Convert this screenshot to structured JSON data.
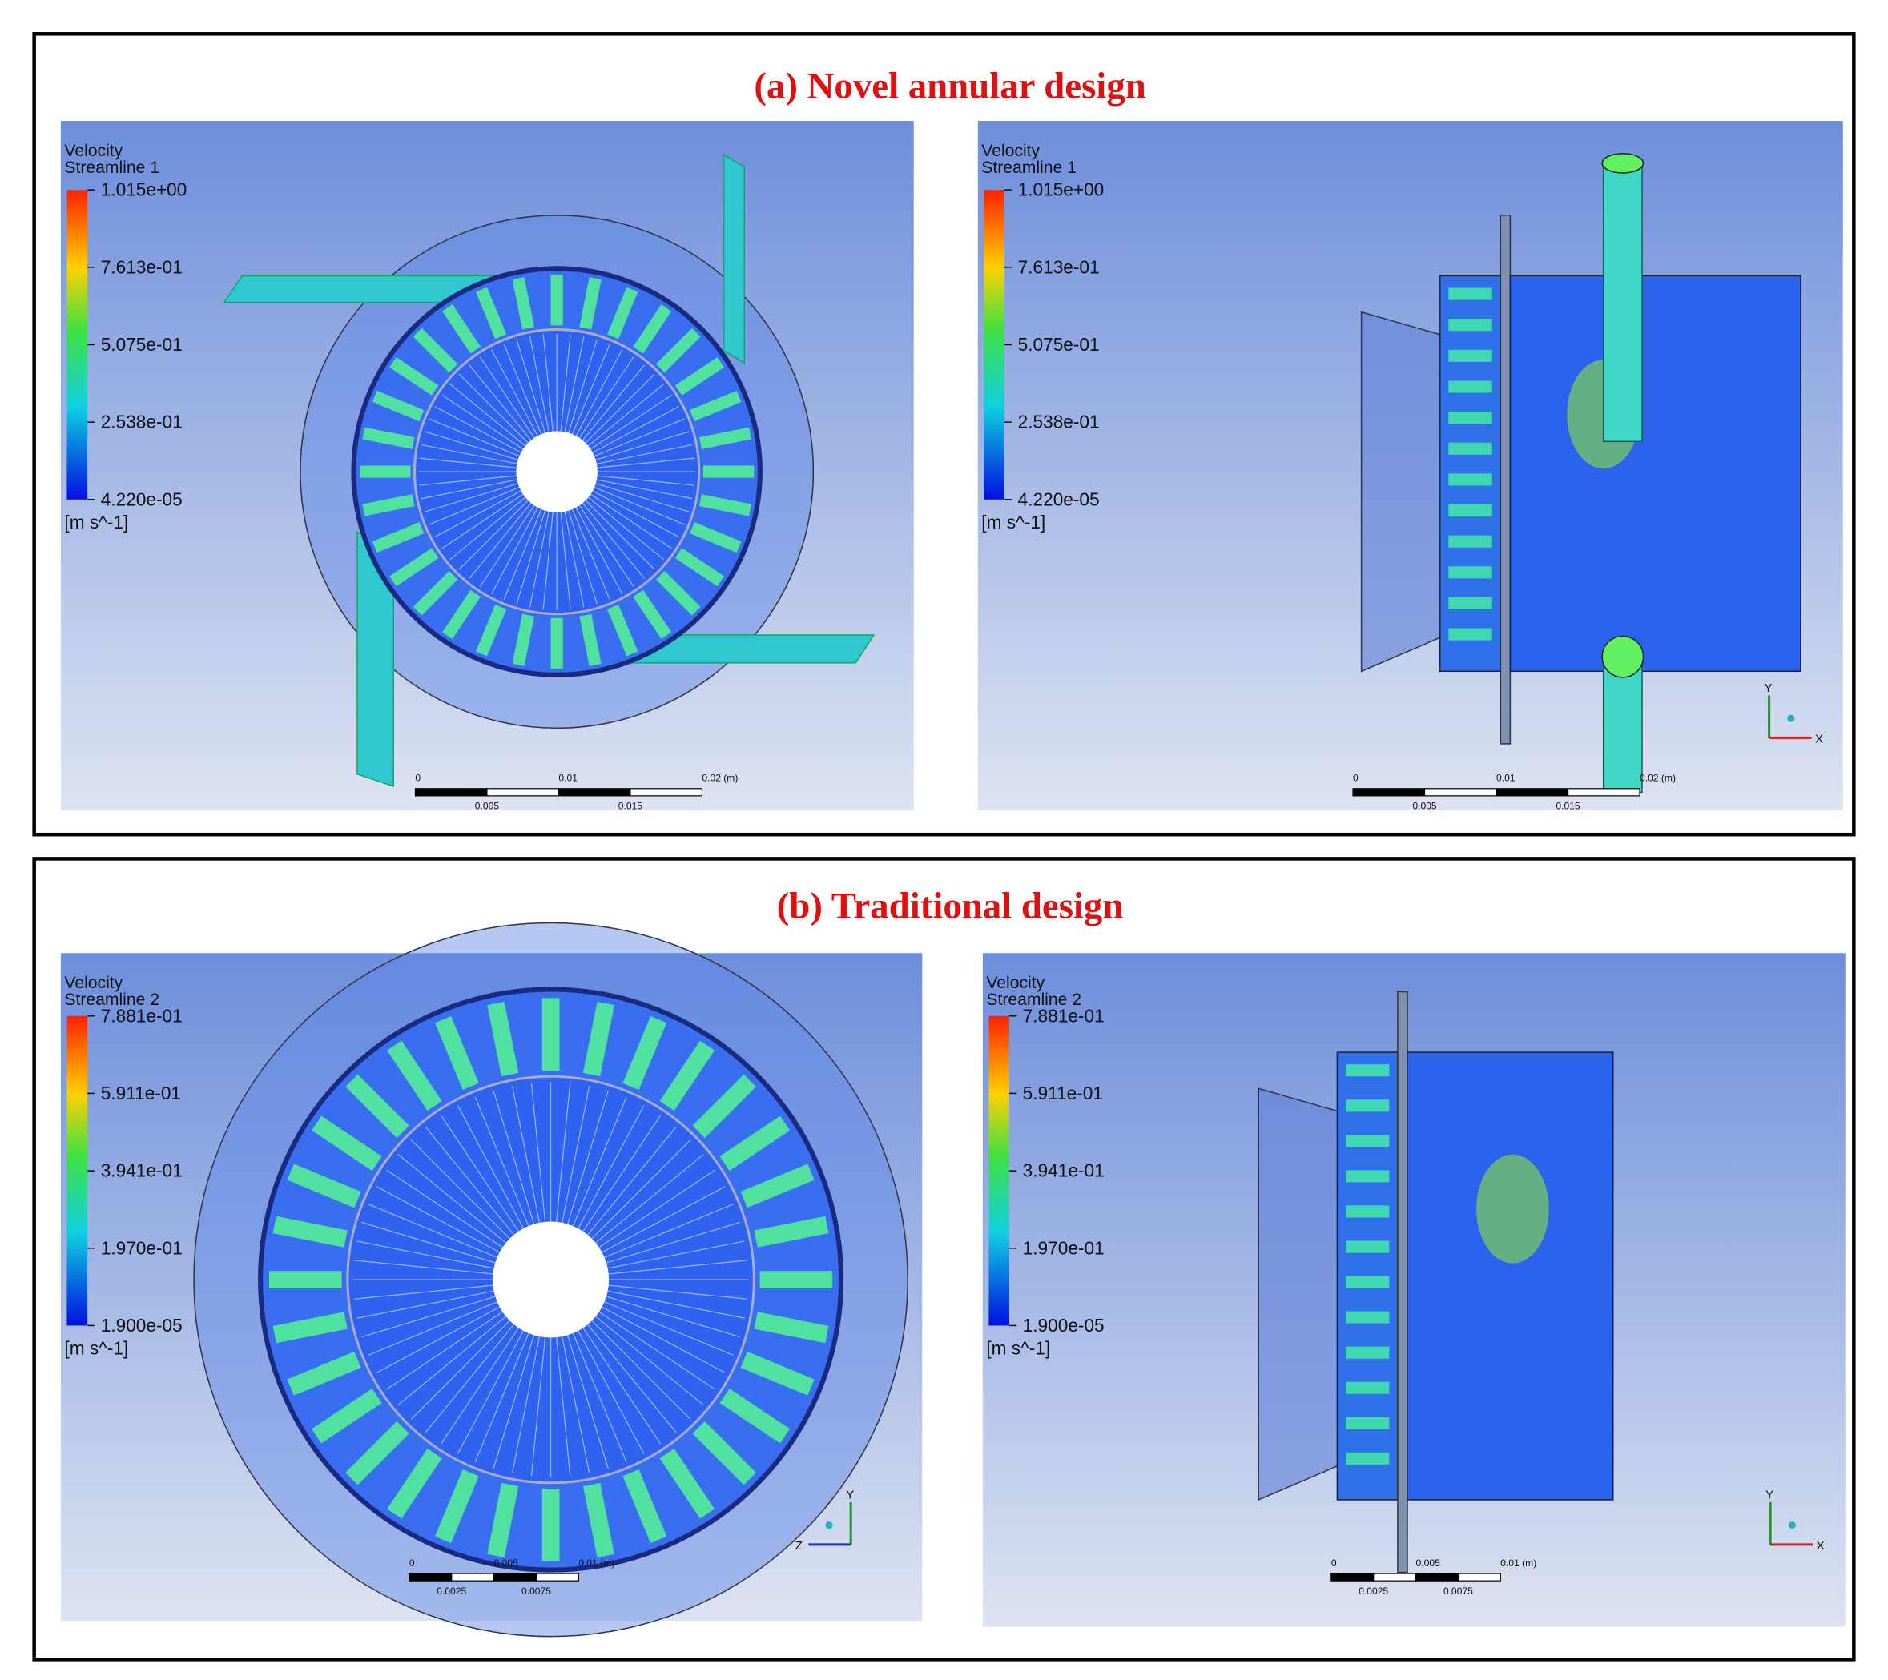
{
  "panels": [
    {
      "title": "(a) Novel annular design",
      "views": [
        {
          "legend": {
            "title": "Velocity",
            "subtitle": "Streamline 1",
            "ticks": [
              "1.015e+00",
              "7.613e-01",
              "5.075e-01",
              "2.538e-01",
              "4.220e-05"
            ],
            "unit": "[m s^-1]"
          },
          "scale": {
            "top": [
              "0",
              "0.01",
              "0.02 (m)"
            ],
            "bottom": [
              "0.005",
              "0.015"
            ]
          }
        },
        {
          "legend": {
            "title": "Velocity",
            "subtitle": "Streamline 1",
            "ticks": [
              "1.015e+00",
              "7.613e-01",
              "5.075e-01",
              "2.538e-01",
              "4.220e-05"
            ],
            "unit": "[m s^-1]"
          },
          "scale": {
            "top": [
              "0",
              "0.01",
              "0.02 (m)"
            ],
            "bottom": [
              "0.005",
              "0.015"
            ]
          },
          "axes": {
            "vertical": "Y",
            "horizontal": "X"
          }
        }
      ]
    },
    {
      "title": "(b) Traditional design",
      "views": [
        {
          "legend": {
            "title": "Velocity",
            "subtitle": "Streamline 2",
            "ticks": [
              "7.881e-01",
              "5.911e-01",
              "3.941e-01",
              "1.970e-01",
              "1.900e-05"
            ],
            "unit": "[m s^-1]"
          },
          "scale": {
            "top": [
              "0",
              "0.005",
              "0.01 (m)"
            ],
            "bottom": [
              "0.0025",
              "0.0075"
            ]
          },
          "axes": {
            "vertical": "Y",
            "horizontal": "Z"
          }
        },
        {
          "legend": {
            "title": "Velocity",
            "subtitle": "Streamline 2",
            "ticks": [
              "7.881e-01",
              "5.911e-01",
              "3.941e-01",
              "1.970e-01",
              "1.900e-05"
            ],
            "unit": "[m s^-1]"
          },
          "scale": {
            "top": [
              "0",
              "0.005",
              "0.01 (m)"
            ],
            "bottom": [
              "0.0025",
              "0.0075"
            ]
          },
          "axes": {
            "vertical": "Y",
            "horizontal": "X"
          }
        }
      ]
    }
  ]
}
